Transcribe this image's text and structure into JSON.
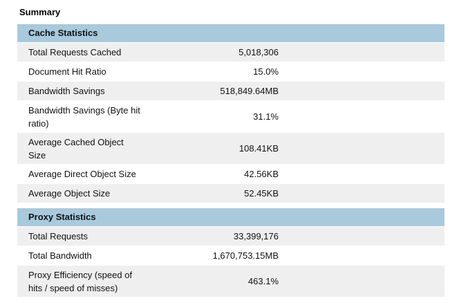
{
  "summary": {
    "title": "Summary"
  },
  "cache": {
    "title": "Cache Statistics",
    "rows": [
      {
        "label": "Total Requests Cached",
        "value": "5,018,306"
      },
      {
        "label": "Document Hit Ratio",
        "value": "15.0%"
      },
      {
        "label": "Bandwidth Savings",
        "value": "518,849.64MB"
      },
      {
        "label": "Bandwidth Savings (Byte hit ratio)",
        "value": "31.1%"
      },
      {
        "label": "Average Cached Object Size",
        "value": "108.41KB"
      },
      {
        "label": "Average Direct Object Size",
        "value": "42.56KB"
      },
      {
        "label": "Average Object Size",
        "value": "52.45KB"
      }
    ]
  },
  "proxy": {
    "title": "Proxy Statistics",
    "rows": [
      {
        "label": "Total Requests",
        "value": "33,399,176"
      },
      {
        "label": "Total Bandwidth",
        "value": "1,670,753.15MB"
      },
      {
        "label": "Proxy Efficiency (speed of hits / speed of misses)",
        "value": "463.1%"
      }
    ]
  },
  "colors": {
    "header_bg": "#a9c9dc",
    "row_alt_bg": "#efefef"
  }
}
